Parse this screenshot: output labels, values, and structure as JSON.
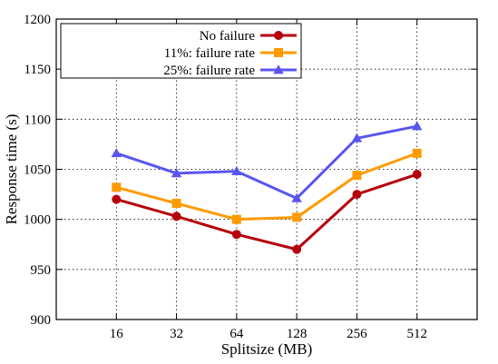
{
  "chart_data": {
    "type": "line",
    "title": "",
    "xlabel": "Splitsize (MB)",
    "ylabel": "Response time (s)",
    "categories": [
      "16",
      "32",
      "64",
      "128",
      "256",
      "512"
    ],
    "ylim": [
      900,
      1200
    ],
    "yticks": [
      900,
      950,
      1000,
      1050,
      1100,
      1150,
      1200
    ],
    "grid": true,
    "legend_position": "top-left",
    "series": [
      {
        "name": "No failure",
        "color": "#b5000c",
        "marker": "circle",
        "values": [
          1020,
          1003,
          985,
          970,
          1025,
          1045
        ]
      },
      {
        "name": "11%: failure rate",
        "color": "#ff9a00",
        "marker": "square",
        "values": [
          1032,
          1016,
          1000,
          1002,
          1044,
          1066
        ]
      },
      {
        "name": "25%: failure rate",
        "color": "#5a55ef",
        "marker": "triangle",
        "values": [
          1066,
          1046,
          1048,
          1021,
          1081,
          1093
        ]
      }
    ]
  }
}
